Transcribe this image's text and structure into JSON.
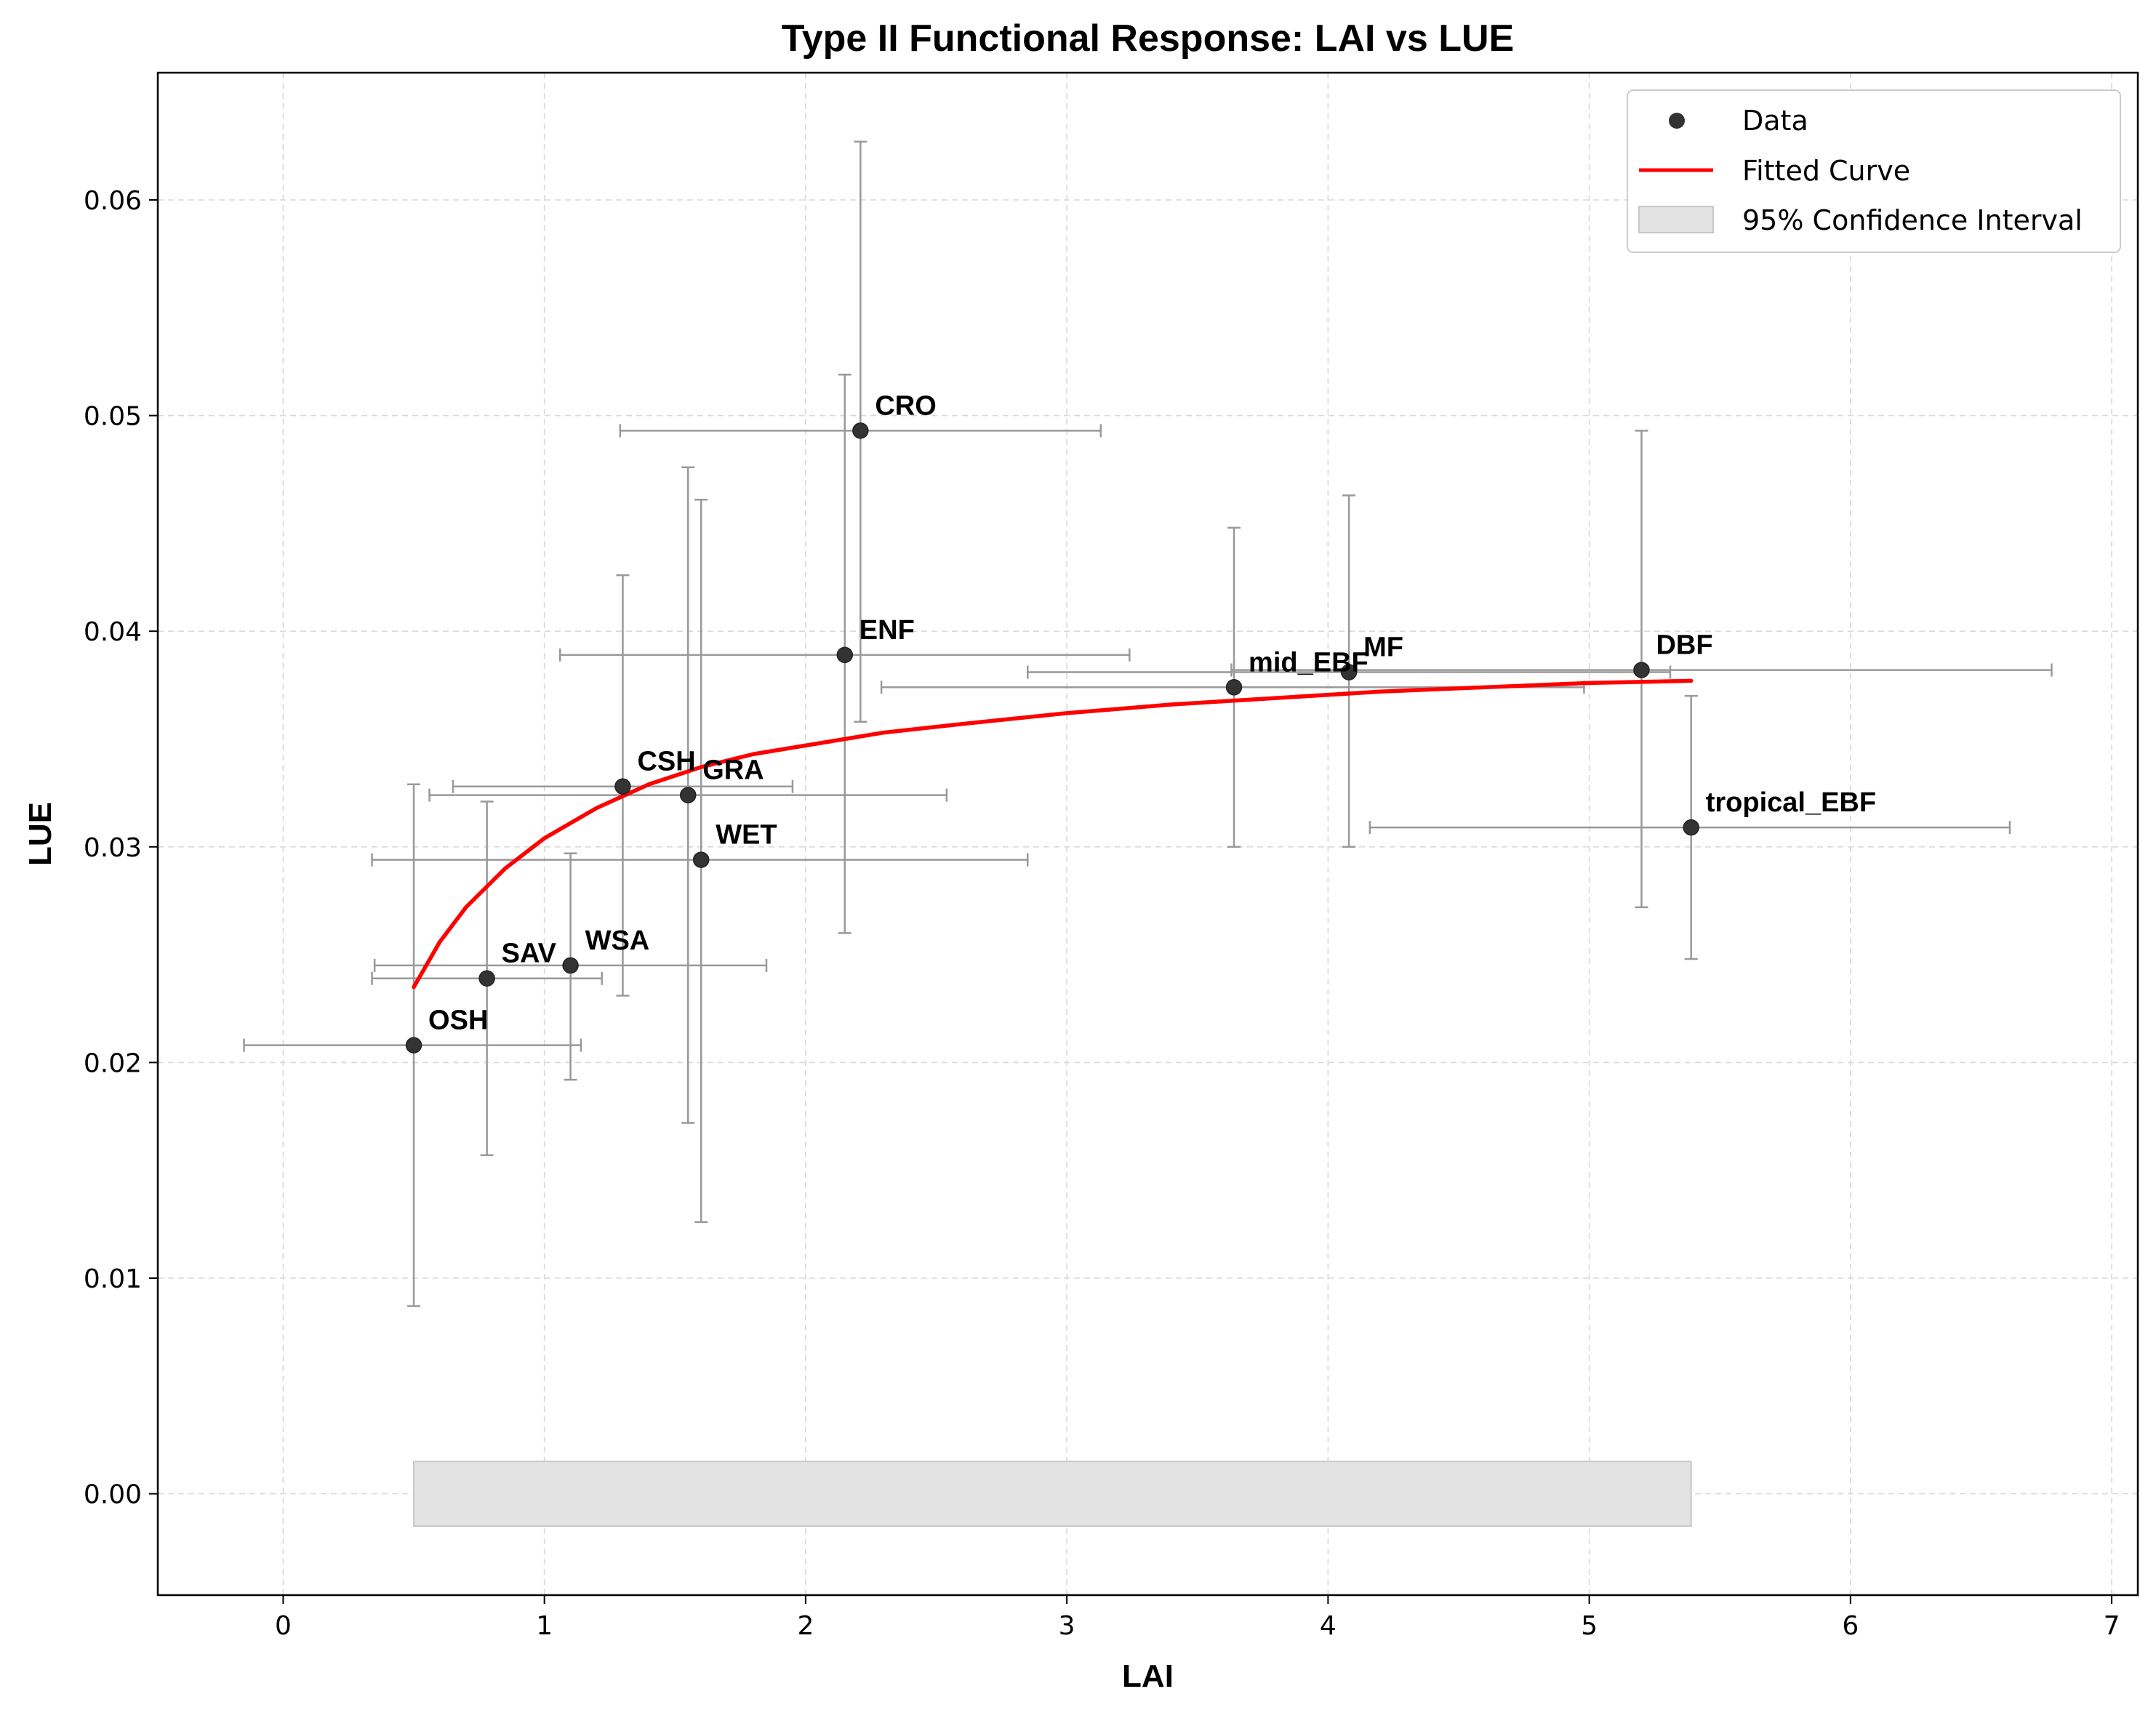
{
  "chart_data": {
    "type": "scatter",
    "title": "Type II Functional Response: LAI vs LUE",
    "xlabel": "LAI",
    "ylabel": "LUE",
    "xlim": [
      -0.48,
      7.1
    ],
    "ylim": [
      -0.0047,
      0.0659
    ],
    "xticks": [
      0,
      1,
      2,
      3,
      4,
      5,
      6,
      7
    ],
    "xtick_labels": [
      "0",
      "1",
      "2",
      "3",
      "4",
      "5",
      "6",
      "7"
    ],
    "yticks": [
      0.0,
      0.01,
      0.02,
      0.03,
      0.04,
      0.05,
      0.06
    ],
    "ytick_labels": [
      "0.00",
      "0.01",
      "0.02",
      "0.03",
      "0.04",
      "0.05",
      "0.06"
    ],
    "grid": true,
    "legend_position": "top-right",
    "legend": [
      "Data",
      "Fitted Curve",
      "95% Confidence Interval"
    ],
    "colors": {
      "points": "#333333",
      "errorbars": "#999999",
      "fit": "#ff0000",
      "ci_fill": "#e3e3e3",
      "ci_edge": "#c8c8c8",
      "grid": "#d9d9d9"
    },
    "points": [
      {
        "label": "OSH",
        "x": 0.5,
        "y": 0.0208,
        "xerr_low": -0.15,
        "xerr_high": 1.14,
        "yerr_low": 0.0087,
        "yerr_high": 0.0329
      },
      {
        "label": "SAV",
        "x": 0.78,
        "y": 0.0239,
        "xerr_low": 0.34,
        "xerr_high": 1.22,
        "yerr_low": 0.0157,
        "yerr_high": 0.0321
      },
      {
        "label": "WSA",
        "x": 1.1,
        "y": 0.0245,
        "xerr_low": 0.35,
        "xerr_high": 1.85,
        "yerr_low": 0.0192,
        "yerr_high": 0.0297
      },
      {
        "label": "CSH",
        "x": 1.3,
        "y": 0.0328,
        "xerr_low": 0.65,
        "xerr_high": 1.95,
        "yerr_low": 0.0231,
        "yerr_high": 0.0426
      },
      {
        "label": "GRA",
        "x": 1.55,
        "y": 0.0324,
        "xerr_low": 0.56,
        "xerr_high": 2.54,
        "yerr_low": 0.0172,
        "yerr_high": 0.0476
      },
      {
        "label": "WET",
        "x": 1.6,
        "y": 0.0294,
        "xerr_low": 0.34,
        "xerr_high": 2.85,
        "yerr_low": 0.0126,
        "yerr_high": 0.0461
      },
      {
        "label": "ENF",
        "x": 2.15,
        "y": 0.0389,
        "xerr_low": 1.06,
        "xerr_high": 3.24,
        "yerr_low": 0.026,
        "yerr_high": 0.0519
      },
      {
        "label": "CRO",
        "x": 2.21,
        "y": 0.0493,
        "xerr_low": 1.29,
        "xerr_high": 3.13,
        "yerr_low": 0.0358,
        "yerr_high": 0.0627
      },
      {
        "label": "mid_EBF",
        "x": 3.64,
        "y": 0.0374,
        "xerr_low": 2.29,
        "xerr_high": 4.98,
        "yerr_low": 0.03,
        "yerr_high": 0.0448
      },
      {
        "label": "MF",
        "x": 4.08,
        "y": 0.0381,
        "xerr_low": 2.85,
        "xerr_high": 5.31,
        "yerr_low": 0.03,
        "yerr_high": 0.0463
      },
      {
        "label": "DBF",
        "x": 5.2,
        "y": 0.0382,
        "xerr_low": 3.63,
        "xerr_high": 6.77,
        "yerr_low": 0.0272,
        "yerr_high": 0.0493
      },
      {
        "label": "tropical_EBF",
        "x": 5.39,
        "y": 0.0309,
        "xerr_low": 4.16,
        "xerr_high": 6.61,
        "yerr_low": 0.0248,
        "yerr_high": 0.037
      }
    ],
    "fitted_curve": {
      "x": [
        0.5,
        0.6,
        0.7,
        0.85,
        1.0,
        1.2,
        1.4,
        1.6,
        1.8,
        2.0,
        2.3,
        2.6,
        3.0,
        3.4,
        3.8,
        4.2,
        4.6,
        5.0,
        5.39
      ],
      "y": [
        0.0235,
        0.0256,
        0.0272,
        0.029,
        0.0304,
        0.0318,
        0.0329,
        0.0337,
        0.0343,
        0.0347,
        0.0353,
        0.0357,
        0.0362,
        0.0366,
        0.0369,
        0.0372,
        0.0374,
        0.0376,
        0.0377
      ]
    },
    "confidence_interval": {
      "x": [
        0.5,
        5.39
      ],
      "lower": [
        -0.0015,
        -0.0015
      ],
      "upper": [
        0.0015,
        0.0015
      ]
    }
  }
}
